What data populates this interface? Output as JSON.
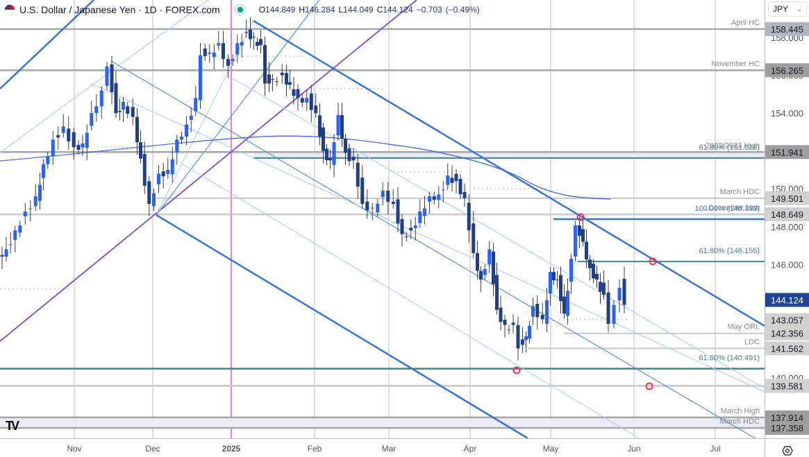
{
  "header": {
    "symbol_title": "U.S. Dollar / Japanese Yen · 1D · FOREX.com",
    "ohlc": {
      "open_label": "O",
      "open": "144.849",
      "high_label": "H",
      "high": "146.284",
      "low_label": "L",
      "low": "144.049",
      "close_label": "C",
      "close": "144.124",
      "change": "−0.703",
      "change_pct": "(−0.49%)"
    },
    "market_status_icon": "market-open-dot-icon"
  },
  "currency_select": {
    "value": "JPY",
    "icon": "chevron-down-icon"
  },
  "colors": {
    "bull": "#2962ff",
    "bear": "#1f3f87",
    "wick": "#333a48",
    "channel_main": "#3d73d0",
    "channel_light": "#a9c4f1",
    "channel_mid": "#5d8fd6",
    "pitchfork": "#7a4fbf",
    "fib": "#4a7f86",
    "level": "#c8c8c8",
    "level_dark": "#a6a6a6",
    "ma": "#3560d9",
    "year_marker": "#d400d4",
    "highlight_band": "#ebe9f3",
    "price_tag_current": "#1e4591",
    "marker": "#e8344a"
  },
  "price_axis": {
    "ticks": [
      "158.000",
      "156.000",
      "154.000",
      "150.000",
      "148.000",
      "146.000",
      "140.000"
    ],
    "tags": [
      {
        "value": "158.445",
        "style": "gray"
      },
      {
        "value": "156.265",
        "style": "dark"
      },
      {
        "value": "151.941",
        "style": "dark"
      },
      {
        "value": "149.501",
        "style": "light"
      },
      {
        "value": "148.649",
        "style": "light"
      },
      {
        "value": "144.124",
        "style": "current"
      },
      {
        "value": "143.057",
        "style": "light"
      },
      {
        "value": "142.356",
        "style": "light"
      },
      {
        "value": "141.562",
        "style": "light"
      },
      {
        "value": "139.581",
        "style": "light"
      },
      {
        "value": "137.914",
        "style": "dark"
      },
      {
        "value": "137.358",
        "style": "dark"
      }
    ]
  },
  "time_axis": {
    "labels": [
      "Nov",
      "Dec",
      "2025",
      "Feb",
      "Mar",
      "Apr",
      "May",
      "Jun",
      "Jul"
    ]
  },
  "annotations": [
    {
      "label": "April HC",
      "price": 158.445,
      "kind": "level"
    },
    {
      "label": "November HC",
      "price": 156.265,
      "kind": "level"
    },
    {
      "label": "2022/2023 High",
      "price": 151.941,
      "kind": "level"
    },
    {
      "label": "61.80% (151.626)",
      "price": 151.626,
      "kind": "fib"
    },
    {
      "label": "March HDC",
      "price": 149.501,
      "kind": "level"
    },
    {
      "label": "December Low",
      "price": 148.649,
      "kind": "level"
    },
    {
      "label": "100.00% (148.393)",
      "price": 148.393,
      "kind": "ext"
    },
    {
      "label": "61.80% (146.155)",
      "price": 146.155,
      "kind": "fib"
    },
    {
      "label": "May ORL",
      "price": 142.356,
      "kind": "level"
    },
    {
      "label": "LDC",
      "price": 141.562,
      "kind": "level"
    },
    {
      "label": "61.80% (140.491)",
      "price": 140.491,
      "kind": "fib"
    },
    {
      "label": "March High",
      "price": 137.914,
      "kind": "level"
    },
    {
      "label": "March HDC",
      "price": 137.358,
      "kind": "level"
    }
  ],
  "chart_data": {
    "type": "candlestick",
    "title": "U.S. Dollar / Japanese Yen · 1D · FOREX.com",
    "xlabel": "",
    "ylabel": "JPY",
    "ylim": [
      136.5,
      159.3
    ],
    "x_range": [
      "2024-10-07",
      "2025-07-28"
    ],
    "last": {
      "open": 144.849,
      "high": 146.284,
      "low": 144.049,
      "close": 144.124,
      "change": -0.703,
      "change_pct": -0.49
    },
    "horizontal_levels": [
      158.445,
      156.265,
      151.941,
      151.626,
      149.501,
      148.649,
      148.393,
      146.155,
      143.057,
      142.356,
      141.562,
      140.491,
      139.581,
      137.914,
      137.358
    ],
    "moving_average": "approx. 200-day SMA, rising from ~151.3 (Oct) to peak ~152.4 (Jan) then declining to ~149.6 (May)",
    "monthly_path": [
      {
        "month": "Oct 2024",
        "open": 146.5,
        "high": 153.9,
        "low": 145.9,
        "close": 152.0
      },
      {
        "month": "Nov 2024",
        "open": 152.0,
        "high": 156.7,
        "low": 149.0,
        "close": 149.8
      },
      {
        "month": "Dec 2024",
        "open": 149.8,
        "high": 158.0,
        "low": 148.6,
        "close": 157.2
      },
      {
        "month": "Jan 2025",
        "open": 157.2,
        "high": 158.9,
        "low": 153.7,
        "close": 155.2
      },
      {
        "month": "Feb 2025",
        "open": 155.2,
        "high": 155.9,
        "low": 148.6,
        "close": 150.6
      },
      {
        "month": "Mar 2025",
        "open": 150.6,
        "high": 151.3,
        "low": 146.5,
        "close": 149.9
      },
      {
        "month": "Apr 2025",
        "open": 149.9,
        "high": 150.5,
        "low": 139.9,
        "close": 143.1
      },
      {
        "month": "May 2025",
        "open": 143.1,
        "high": 148.6,
        "low": 142.1,
        "close": 144.1
      }
    ]
  },
  "branding": {
    "logo": "TV"
  }
}
